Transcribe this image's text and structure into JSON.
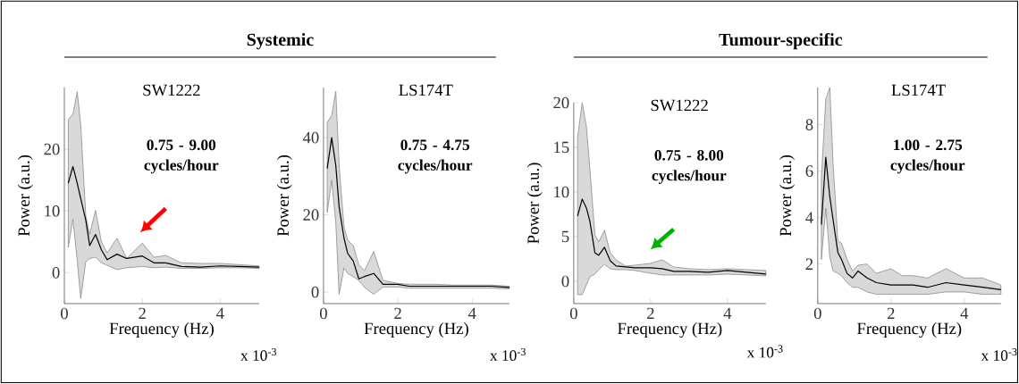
{
  "chart_data": [
    {
      "type": "line",
      "title": "SW1222",
      "xlabel": "Frequency (Hz)",
      "ylabel": "Power (a.u.)",
      "annotations": [
        "0.75 - 9.00 cycles/hour",
        "x 10$^{-3}$",
        "Systemic"
      ],
      "x": [
        0.1,
        0.22,
        0.33,
        0.42,
        0.55,
        0.65,
        0.8,
        0.95,
        1.1,
        1.35,
        1.6,
        2.0,
        2.3,
        2.6,
        3.0,
        3.5,
        4.0,
        4.5,
        5.0
      ],
      "xlim": [
        0,
        5
      ],
      "xticks": [
        0,
        2,
        4
      ],
      "ylim": [
        -5,
        30
      ],
      "yticks": [
        0,
        10,
        20
      ],
      "series": [
        {
          "color": "#000000",
          "values": [
            14.5,
            17.2,
            14.5,
            12,
            8.5,
            4.4,
            6.2,
            3.7,
            2.1,
            3.0,
            2.3,
            2.7,
            1.6,
            1.6,
            1.0,
            0.9,
            1.1,
            1.0,
            0.9
          ],
          "lower": [
            4.1,
            8.7,
            2,
            -4.2,
            1.8,
            2.3,
            2.5,
            1.6,
            1.2,
            0.5,
            0.8,
            1.0,
            0.8,
            0.9,
            0.7,
            0.7,
            0.8,
            0.8,
            0.7
          ],
          "upper": [
            24.8,
            25.7,
            29.3,
            24,
            9.2,
            6.2,
            10.1,
            5,
            3.2,
            5.6,
            2.3,
            4.8,
            2.5,
            2.8,
            1.6,
            1.5,
            1.5,
            1.3,
            1.1
          ]
        }
      ]
    },
    {
      "type": "line",
      "title": "LS174T",
      "xlabel": "Frequency (Hz)",
      "ylabel": "Power (a.u.)",
      "annotations": [
        "0.75 - 4.75 cycles/hour",
        "x 10$^{-3}$"
      ],
      "x": [
        0.1,
        0.22,
        0.33,
        0.42,
        0.55,
        0.65,
        0.8,
        0.95,
        1.1,
        1.35,
        1.6,
        2.0,
        2.3,
        2.6,
        3.0,
        3.5,
        4.0,
        4.5,
        5.0
      ],
      "xlim": [
        0,
        5
      ],
      "xticks": [
        0,
        2,
        4
      ],
      "ylim": [
        -3,
        53
      ],
      "yticks": [
        0,
        20,
        40
      ],
      "series": [
        {
          "color": "#000000",
          "values": [
            32,
            40,
            32.8,
            22,
            14,
            10,
            8,
            3.4,
            4,
            4.8,
            2,
            2,
            1.5,
            1.5,
            1.5,
            1.5,
            1.5,
            1.5,
            1.2
          ],
          "lower": [
            20.6,
            29,
            18,
            -0.6,
            6.2,
            4.8,
            4,
            3,
            1.2,
            -0.6,
            1.3,
            1.3,
            1.0,
            1.0,
            1,
            1,
            1,
            1,
            0.8
          ],
          "upper": [
            44,
            45.7,
            52,
            32.8,
            17,
            13.4,
            12,
            7,
            5.5,
            10.5,
            3,
            2.2,
            2,
            2,
            2,
            1.8,
            1.8,
            1.8,
            1.5
          ]
        }
      ]
    },
    {
      "type": "line",
      "title": "SW1222",
      "xlabel": "Frequency (Hz)",
      "ylabel": "Power (a.u.)",
      "annotations": [
        "0.75 - 8.00 cycles/hour",
        "x 10$^{-3}$",
        "Tumour-specific"
      ],
      "x": [
        0.1,
        0.22,
        0.33,
        0.42,
        0.55,
        0.65,
        0.8,
        0.95,
        1.1,
        1.35,
        1.6,
        2.0,
        2.3,
        2.6,
        3.0,
        3.5,
        4.0,
        4.5,
        5.0
      ],
      "xlim": [
        0,
        5
      ],
      "xticks": [
        0,
        2,
        4
      ],
      "ylim": [
        -2.5,
        20
      ],
      "yticks": [
        0,
        5,
        10,
        15,
        20
      ],
      "series": [
        {
          "color": "#000000",
          "values": [
            7.3,
            9.2,
            8.2,
            6.7,
            3.2,
            2.9,
            3.8,
            2.3,
            1.7,
            1.6,
            1.5,
            1.5,
            1.4,
            1.1,
            1.1,
            1.0,
            1.2,
            1.0,
            0.8
          ],
          "lower": [
            -1.5,
            -1.5,
            -0.4,
            0.5,
            0.8,
            1.3,
            1.9,
            1.4,
            1.3,
            1.3,
            1.2,
            0.9,
            0.7,
            0.7,
            0.7,
            0.7,
            0.8,
            0.7,
            0.6
          ],
          "upper": [
            16.1,
            20,
            17.3,
            12.6,
            5.2,
            4.4,
            5.7,
            3.2,
            2.4,
            1.7,
            1.8,
            2.0,
            2.4,
            1.6,
            1.4,
            1.3,
            1.4,
            1.3,
            1.2
          ]
        }
      ]
    },
    {
      "type": "line",
      "title": "LS174T",
      "xlabel": "Frequency (Hz)",
      "ylabel": "Power (a.u.)",
      "annotations": [
        "1.00 - 2.75 cycles/hour",
        "x 10$^{-3}$"
      ],
      "x": [
        0.1,
        0.22,
        0.33,
        0.42,
        0.55,
        0.65,
        0.8,
        0.95,
        1.1,
        1.35,
        1.6,
        2.0,
        2.3,
        2.6,
        3.0,
        3.5,
        4.0,
        4.5,
        5.0
      ],
      "xlim": [
        0,
        5
      ],
      "xticks": [
        0,
        2,
        4
      ],
      "ylim": [
        0.3,
        9.6
      ],
      "yticks": [
        2,
        4,
        6,
        8
      ],
      "series": [
        {
          "color": "#000000",
          "values": [
            3.7,
            6.6,
            4.9,
            3.9,
            2.5,
            2.2,
            1.6,
            1.4,
            1.7,
            1.4,
            1.2,
            1.1,
            1.1,
            1.1,
            1.0,
            1.2,
            1.1,
            1.0,
            0.9
          ],
          "lower": [
            2.2,
            4.4,
            2.3,
            1.7,
            1.6,
            1.5,
            1.2,
            1.0,
            1.0,
            0.8,
            0.7,
            0.7,
            0.7,
            0.7,
            0.7,
            0.8,
            0.8,
            0.7,
            0.7
          ],
          "upper": [
            5.7,
            9.1,
            9.6,
            6.3,
            3.0,
            2.9,
            2.2,
            1.7,
            1.95,
            2.0,
            1.6,
            1.8,
            1.5,
            1.5,
            1.4,
            1.8,
            1.4,
            1.4,
            1.1
          ]
        }
      ]
    }
  ]
}
